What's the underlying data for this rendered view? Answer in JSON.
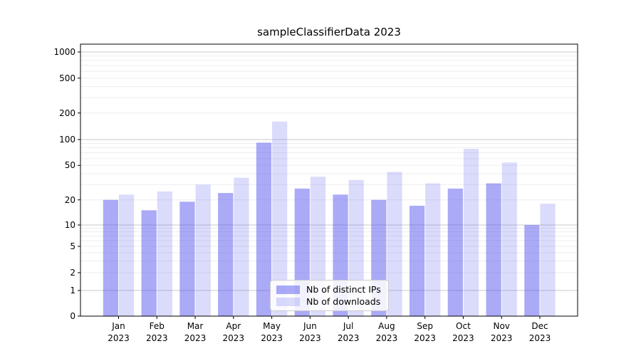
{
  "chart_data": {
    "type": "bar",
    "title": "sampleClassifierData 2023",
    "categories": [
      "Jan",
      "Feb",
      "Mar",
      "Apr",
      "May",
      "Jun",
      "Jul",
      "Aug",
      "Sep",
      "Oct",
      "Nov",
      "Dec"
    ],
    "x_year": "2023",
    "series": [
      {
        "name": "Nb of distinct IPs",
        "color": "#5555f0",
        "alpha": 0.5,
        "values": [
          20,
          15,
          19,
          24,
          92,
          27,
          23,
          20,
          17,
          27,
          31,
          10
        ]
      },
      {
        "name": "Nb of downloads",
        "color": "#5555f0",
        "alpha": 0.21,
        "values": [
          23,
          25,
          30,
          36,
          160,
          37,
          34,
          42,
          31,
          78,
          54,
          18
        ]
      }
    ],
    "yscale": "symlog",
    "y_ticks": [
      0,
      1,
      2,
      5,
      10,
      20,
      50,
      100,
      200,
      500,
      1000
    ],
    "ylim": [
      0,
      1400
    ],
    "grid": true,
    "legend_position": "lower center",
    "colors": {
      "major_grid": "#c9c9c9",
      "minor_grid": "#ededed",
      "spine": "#000000",
      "background": "#ffffff"
    }
  }
}
